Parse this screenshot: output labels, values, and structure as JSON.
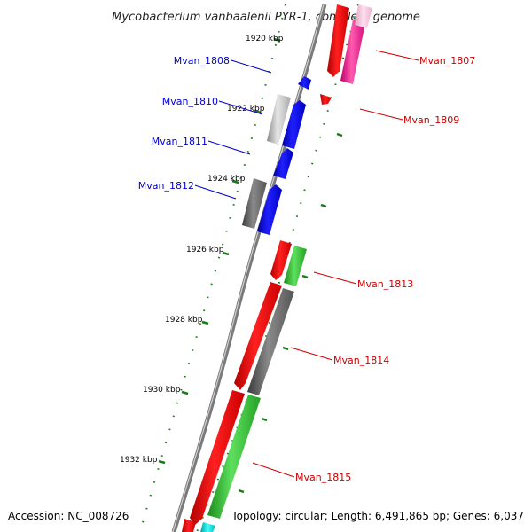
{
  "title": "Mycobacterium vanbaalenii PYR-1, complete genome",
  "accession": "Accession: NC_008726",
  "summary": "Topology: circular; Length: 6,491,865 bp; Genes: 6,037",
  "ticks": [
    {
      "label": "1920 kbp"
    },
    {
      "label": "1922 kbp"
    },
    {
      "label": "1924 kbp"
    },
    {
      "label": "1926 kbp"
    },
    {
      "label": "1928 kbp"
    },
    {
      "label": "1930 kbp"
    },
    {
      "label": "1932 kbp"
    }
  ],
  "gene_labels": [
    {
      "text": "Mvan_1808",
      "strand": "minus",
      "color": "#0000cc"
    },
    {
      "text": "Mvan_1810",
      "strand": "minus",
      "color": "#0000cc"
    },
    {
      "text": "Mvan_1811",
      "strand": "minus",
      "color": "#0000cc"
    },
    {
      "text": "Mvan_1812",
      "strand": "minus",
      "color": "#0000cc"
    },
    {
      "text": "Mvan_1807",
      "strand": "plus",
      "color": "#cc0000"
    },
    {
      "text": "Mvan_1809",
      "strand": "plus",
      "color": "#cc0000"
    },
    {
      "text": "Mvan_1813",
      "strand": "plus",
      "color": "#cc0000"
    },
    {
      "text": "Mvan_1814",
      "strand": "plus",
      "color": "#cc0000"
    },
    {
      "text": "Mvan_1815",
      "strand": "plus",
      "color": "#cc0000"
    }
  ],
  "colors": {
    "backbone": "#8a8a8a",
    "tick_major": "#1a7a1a",
    "minus_label": "#0000cc",
    "plus_label": "#cc0000"
  }
}
